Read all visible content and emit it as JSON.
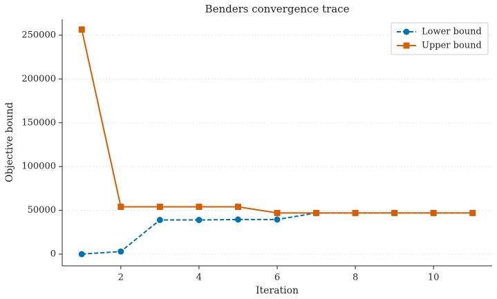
{
  "chart_data": {
    "type": "line",
    "title": "Benders convergence trace",
    "x_label": "Iteration",
    "y_label": "Objective bound",
    "x": [
      1,
      2,
      3,
      4,
      5,
      6,
      7,
      8,
      9,
      10,
      11
    ],
    "series": [
      {
        "name": "Lower bound",
        "color": "#0072b2",
        "linestyle": "dashed",
        "marker": "circle",
        "values": [
          0,
          3000,
          39000,
          39000,
          39500,
          39500,
          47000,
          47000,
          47000,
          47000,
          47000
        ]
      },
      {
        "name": "Upper bound",
        "color": "#d55e00",
        "linestyle": "solid",
        "marker": "square",
        "values": [
          256500,
          54000,
          54000,
          54000,
          54000,
          47000,
          47000,
          47000,
          47000,
          47000,
          47000
        ]
      }
    ],
    "xlim": [
      0.5,
      11.5
    ],
    "xticks": [
      2,
      4,
      6,
      8,
      10
    ],
    "ylim": [
      -13400,
      268100
    ],
    "yticks": [
      0,
      50000,
      100000,
      150000,
      200000,
      250000
    ],
    "grid": true,
    "legend": "upper right"
  }
}
